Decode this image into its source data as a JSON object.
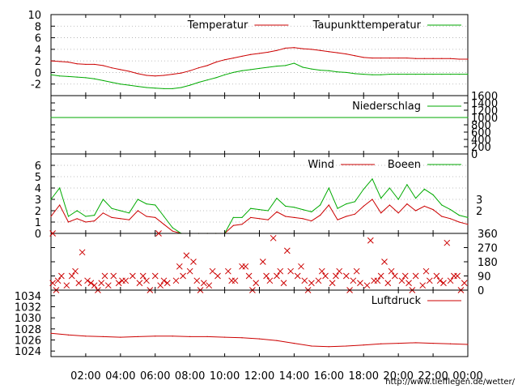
{
  "chart_data": [
    {
      "type": "line",
      "panel": "temperature",
      "ylim": [
        -4,
        10
      ],
      "yticks": [
        -2,
        0,
        2,
        4,
        6,
        8,
        10
      ],
      "grid": true,
      "legend_position": "top-right",
      "series": [
        {
          "name": "Temperatur",
          "color": "#cc0000",
          "x": [
            0,
            0.5,
            1,
            1.5,
            2,
            2.5,
            3,
            3.5,
            4,
            4.5,
            5,
            5.5,
            6,
            6.5,
            7,
            7.5,
            8,
            8.5,
            9,
            9.5,
            10,
            10.5,
            11,
            11.5,
            12,
            12.5,
            13,
            13.5,
            14,
            14.5,
            15,
            15.5,
            16,
            16.5,
            17,
            17.5,
            18,
            18.5,
            19,
            19.5,
            20,
            20.5,
            21,
            21.5,
            22,
            22.5,
            23,
            23.5,
            24
          ],
          "y": [
            2,
            1.9,
            1.8,
            1.5,
            1.4,
            1.4,
            1.2,
            0.8,
            0.5,
            0.2,
            -0.2,
            -0.5,
            -0.6,
            -0.5,
            -0.3,
            -0.1,
            0.3,
            0.8,
            1.2,
            1.8,
            2.2,
            2.5,
            2.8,
            3.1,
            3.3,
            3.5,
            3.8,
            4.2,
            4.3,
            4.1,
            4,
            3.8,
            3.6,
            3.4,
            3.2,
            2.9,
            2.6,
            2.5,
            2.5,
            2.5,
            2.5,
            2.5,
            2.4,
            2.4,
            2.4,
            2.4,
            2.4,
            2.3,
            2.3
          ]
        },
        {
          "name": "Taupunkttemperatur",
          "color": "#00aa00",
          "x": [
            0,
            0.5,
            1,
            1.5,
            2,
            2.5,
            3,
            3.5,
            4,
            4.5,
            5,
            5.5,
            6,
            6.5,
            7,
            7.5,
            8,
            8.5,
            9,
            9.5,
            10,
            10.5,
            11,
            11.5,
            12,
            12.5,
            13,
            13.5,
            14,
            14.5,
            15,
            15.5,
            16,
            16.5,
            17,
            17.5,
            18,
            18.5,
            19,
            19.5,
            20,
            20.5,
            21,
            21.5,
            22,
            22.5,
            23,
            23.5,
            24
          ],
          "y": [
            -0.4,
            -0.6,
            -0.7,
            -0.8,
            -0.9,
            -1.1,
            -1.4,
            -1.7,
            -2,
            -2.2,
            -2.4,
            -2.6,
            -2.7,
            -2.8,
            -2.8,
            -2.6,
            -2.2,
            -1.7,
            -1.3,
            -0.9,
            -0.4,
            0,
            0.3,
            0.5,
            0.7,
            0.9,
            1.1,
            1.2,
            1.6,
            0.9,
            0.6,
            0.4,
            0.3,
            0.1,
            0,
            -0.2,
            -0.3,
            -0.4,
            -0.4,
            -0.3,
            -0.3,
            -0.3,
            -0.3,
            -0.3,
            -0.3,
            -0.3,
            -0.3,
            -0.3,
            -0.3
          ]
        }
      ]
    },
    {
      "type": "line",
      "panel": "precipitation",
      "ylim": [
        0,
        1600
      ],
      "yticks": [
        0,
        200,
        400,
        600,
        800,
        1000,
        1200,
        1400,
        1600
      ],
      "legend_position": "top-right",
      "series": [
        {
          "name": "Niederschlag",
          "color": "#00aa00",
          "x": [
            0,
            24
          ],
          "y": [
            1000,
            1000
          ]
        }
      ]
    },
    {
      "type": "line",
      "panel": "wind",
      "ylim": [
        0,
        7
      ],
      "yticks": [
        0,
        1,
        2,
        3,
        4,
        5,
        6
      ],
      "right_ticks": [
        2,
        3
      ],
      "grid": true,
      "legend_position": "top-right",
      "series": [
        {
          "name": "Wind",
          "color": "#cc0000",
          "x": [
            0,
            0.5,
            1,
            1.5,
            2,
            2.5,
            3,
            3.5,
            4,
            4.5,
            5,
            5.5,
            6,
            6.5,
            7,
            7.5,
            8,
            8.5,
            9,
            9.5,
            10,
            10.5,
            11,
            11.5,
            12,
            12.5,
            13,
            13.5,
            14,
            14.5,
            15,
            15.5,
            16,
            16.5,
            17,
            17.5,
            18,
            18.5,
            19,
            19.5,
            20,
            20.5,
            21,
            21.5,
            22,
            22.5,
            23,
            23.5,
            24
          ],
          "y": [
            1.5,
            2.5,
            1,
            1.3,
            1,
            1.1,
            1.8,
            1.4,
            1.3,
            1.2,
            2,
            1.5,
            1.4,
            0.8,
            0.2,
            0,
            0,
            0,
            0,
            0,
            0,
            0.7,
            0.8,
            1.4,
            1.3,
            1.2,
            1.9,
            1.5,
            1.4,
            1.3,
            1.1,
            1.6,
            2.5,
            1.2,
            1.5,
            1.7,
            2.4,
            3,
            1.8,
            2.5,
            1.8,
            2.6,
            2,
            2.4,
            2.1,
            1.5,
            1.3,
            1,
            0.8
          ]
        },
        {
          "name": "Boeen",
          "color": "#00aa00",
          "x": [
            0,
            0.5,
            1,
            1.5,
            2,
            2.5,
            3,
            3.5,
            4,
            4.5,
            5,
            5.5,
            6,
            6.5,
            7,
            7.5,
            8,
            8.5,
            9,
            9.5,
            10,
            10.5,
            11,
            11.5,
            12,
            12.5,
            13,
            13.5,
            14,
            14.5,
            15,
            15.5,
            16,
            16.5,
            17,
            17.5,
            18,
            18.5,
            19,
            19.5,
            20,
            20.5,
            21,
            21.5,
            22,
            22.5,
            23,
            23.5,
            24
          ],
          "y": [
            3,
            4,
            1.5,
            2,
            1.5,
            1.6,
            3,
            2.2,
            2,
            1.8,
            3,
            2.6,
            2.5,
            1.5,
            0.5,
            0,
            0,
            0,
            0,
            0,
            0,
            1.4,
            1.4,
            2.2,
            2.1,
            2,
            3.1,
            2.4,
            2.3,
            2.1,
            1.9,
            2.5,
            4,
            2.2,
            2.6,
            2.8,
            3.9,
            4.8,
            3.1,
            4,
            3,
            4.3,
            3.1,
            3.9,
            3.4,
            2.5,
            2.1,
            1.6,
            1.4
          ]
        }
      ]
    },
    {
      "type": "scatter",
      "panel": "wind-direction",
      "ylim": [
        0,
        360
      ],
      "yticks": [
        0,
        90,
        180,
        270,
        360
      ],
      "marker": "x",
      "color": "#cc0000",
      "x": [
        0.1,
        0.4,
        0.9,
        1.2,
        1.6,
        2.1,
        2.5,
        2.9,
        3.3,
        3.6,
        3.9,
        4.3,
        4.7,
        5.1,
        5.5,
        6,
        6.3,
        6.7,
        7.2,
        7.6,
        8,
        8.4,
        8.8,
        9.1,
        9.6,
        10.2,
        10.6,
        11,
        11.4,
        11.8,
        12.2,
        12.6,
        13,
        13.4,
        13.8,
        14.2,
        14.6,
        15,
        15.4,
        15.8,
        16.2,
        16.6,
        17,
        17.4,
        17.8,
        18.2,
        18.6,
        19,
        19.4,
        19.8,
        20.2,
        20.6,
        21,
        21.4,
        21.8,
        22.2,
        22.6,
        23,
        23.4,
        23.8,
        0.6,
        1.4,
        2.3,
        3.1,
        4.1,
        5.3,
        6.5,
        7.4,
        8.2,
        9.3,
        10.4,
        11.2,
        12.4,
        13.2,
        14.4,
        15.6,
        16.4,
        17.6,
        18.8,
        19.6,
        20.4,
        21.6,
        22.4,
        23.2,
        0.3,
        2.7,
        5.7,
        8.6,
        11.6,
        14.8,
        17.2,
        20.8,
        23.6,
        0.1,
        6.2,
        12.8,
        18.4,
        22.8,
        1.8,
        7.8,
        13.6,
        19.2
      ],
      "y": [
        45,
        60,
        30,
        90,
        45,
        60,
        30,
        45,
        30,
        90,
        45,
        60,
        90,
        45,
        60,
        90,
        30,
        45,
        60,
        90,
        120,
        60,
        45,
        30,
        90,
        120,
        60,
        150,
        90,
        45,
        180,
        60,
        90,
        45,
        120,
        90,
        60,
        45,
        60,
        90,
        45,
        120,
        90,
        60,
        45,
        30,
        60,
        90,
        45,
        90,
        60,
        45,
        90,
        30,
        60,
        90,
        45,
        60,
        90,
        45,
        90,
        120,
        45,
        90,
        60,
        90,
        60,
        150,
        180,
        120,
        60,
        150,
        90,
        120,
        150,
        120,
        90,
        120,
        60,
        120,
        90,
        120,
        60,
        90,
        0,
        0,
        0,
        0,
        0,
        0,
        0,
        0,
        0,
        360,
        360,
        330,
        315,
        300,
        240,
        220,
        250,
        180
      ]
    },
    {
      "type": "line",
      "panel": "pressure",
      "ylim": [
        1023,
        1035
      ],
      "yticks": [
        1024,
        1026,
        1028,
        1030,
        1032,
        1034
      ],
      "legend_position": "top-right",
      "series": [
        {
          "name": "Luftdruck",
          "color": "#cc0000",
          "x": [
            0,
            1,
            2,
            3,
            4,
            5,
            6,
            7,
            8,
            9,
            10,
            11,
            12,
            13,
            14,
            15,
            16,
            17,
            18,
            19,
            20,
            21,
            22,
            23,
            24
          ],
          "y": [
            1027.2,
            1026.9,
            1026.7,
            1026.6,
            1026.5,
            1026.6,
            1026.7,
            1026.7,
            1026.6,
            1026.6,
            1026.5,
            1026.4,
            1026.2,
            1025.9,
            1025.4,
            1024.9,
            1024.8,
            1024.9,
            1025.1,
            1025.3,
            1025.4,
            1025.5,
            1025.4,
            1025.3,
            1025.2
          ]
        }
      ]
    }
  ],
  "x_axis": {
    "range": [
      0,
      24
    ],
    "tick_labels": [
      "02:00",
      "04:00",
      "06:00",
      "08:00",
      "10:00",
      "12:00",
      "14:00",
      "16:00",
      "18:00",
      "20:00",
      "22:00",
      "00:00"
    ],
    "tick_hours": [
      2,
      4,
      6,
      8,
      10,
      12,
      14,
      16,
      18,
      20,
      22,
      24
    ]
  },
  "credit": "http://www.tiefflegen.de/wetter/"
}
